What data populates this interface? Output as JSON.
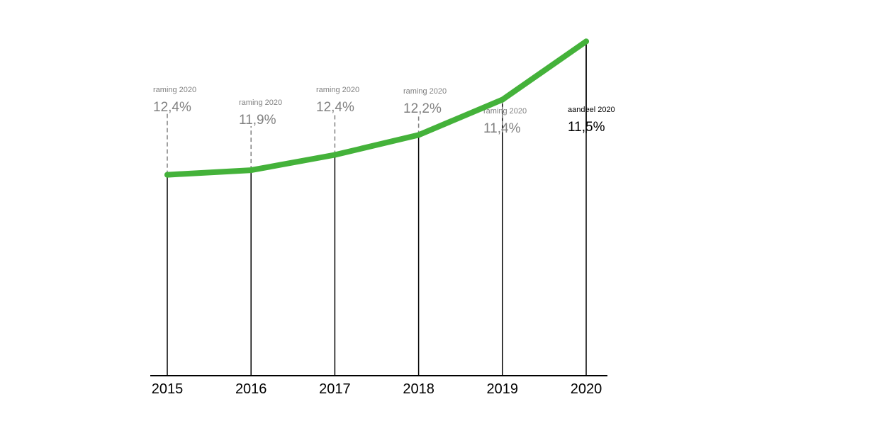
{
  "chart_data": {
    "type": "line",
    "title": "",
    "xlabel": "",
    "ylabel": "",
    "categories": [
      "2015",
      "2016",
      "2017",
      "2018",
      "2019",
      "2020"
    ],
    "series": [
      {
        "values": [
          4.6,
          4.9,
          5.9,
          7.2,
          9.5,
          13.3
        ]
      }
    ],
    "ylim": [
      -8.5,
      16
    ],
    "grid": false,
    "line_color": "#44b23a",
    "annotations": [
      {
        "category": "2015",
        "label": "raming 2020",
        "value_text": "12,4%",
        "style": "forecast"
      },
      {
        "category": "2016",
        "label": "raming 2020",
        "value_text": "11,9%",
        "style": "forecast"
      },
      {
        "category": "2017",
        "label": "raming 2020",
        "value_text": "12,4%",
        "style": "forecast"
      },
      {
        "category": "2018",
        "label": "raming 2020",
        "value_text": "12,2%",
        "style": "forecast"
      },
      {
        "category": "2019",
        "label": "raming 2020",
        "value_text": "11,4%",
        "style": "forecast"
      },
      {
        "category": "2020",
        "label": "aandeel 2020",
        "value_text": "11,5%",
        "style": "actual"
      }
    ],
    "annotation_colors": {
      "forecast": "#808080",
      "actual": "#000000"
    }
  }
}
